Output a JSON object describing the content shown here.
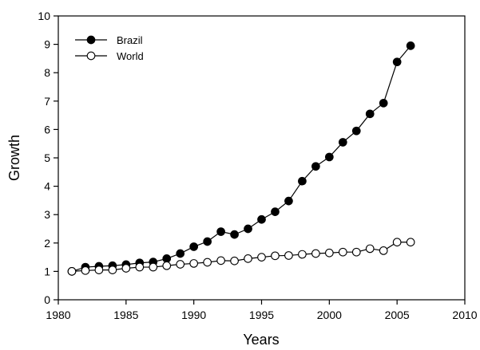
{
  "chart_data": {
    "type": "line",
    "title": "",
    "xlabel": "Years",
    "ylabel": "Growth",
    "xlim": [
      1980,
      2010
    ],
    "ylim": [
      0,
      10
    ],
    "x_ticks": [
      1980,
      1985,
      1990,
      1995,
      2000,
      2005,
      2010
    ],
    "y_ticks": [
      0,
      1,
      2,
      3,
      4,
      5,
      6,
      7,
      8,
      9,
      10
    ],
    "grid": false,
    "legend_position": "top-left",
    "x": [
      1981,
      1982,
      1983,
      1984,
      1985,
      1986,
      1987,
      1988,
      1989,
      1990,
      1991,
      1992,
      1993,
      1994,
      1995,
      1996,
      1997,
      1998,
      1999,
      2000,
      2001,
      2002,
      2003,
      2004,
      2005,
      2006
    ],
    "series": [
      {
        "name": "Brazil",
        "marker": "filled-circle",
        "color": "#000000",
        "values": [
          1.0,
          1.15,
          1.18,
          1.2,
          1.24,
          1.3,
          1.33,
          1.45,
          1.63,
          1.87,
          2.05,
          2.4,
          2.3,
          2.5,
          2.83,
          3.1,
          3.48,
          4.18,
          4.7,
          5.03,
          5.55,
          5.95,
          6.55,
          6.93,
          8.38,
          8.95
        ]
      },
      {
        "name": "World",
        "marker": "open-circle",
        "color": "#000000",
        "values": [
          1.0,
          1.03,
          1.05,
          1.05,
          1.11,
          1.15,
          1.15,
          1.2,
          1.25,
          1.28,
          1.32,
          1.38,
          1.37,
          1.45,
          1.5,
          1.55,
          1.56,
          1.6,
          1.63,
          1.65,
          1.68,
          1.68,
          1.8,
          1.73,
          2.03,
          2.03
        ]
      }
    ]
  }
}
